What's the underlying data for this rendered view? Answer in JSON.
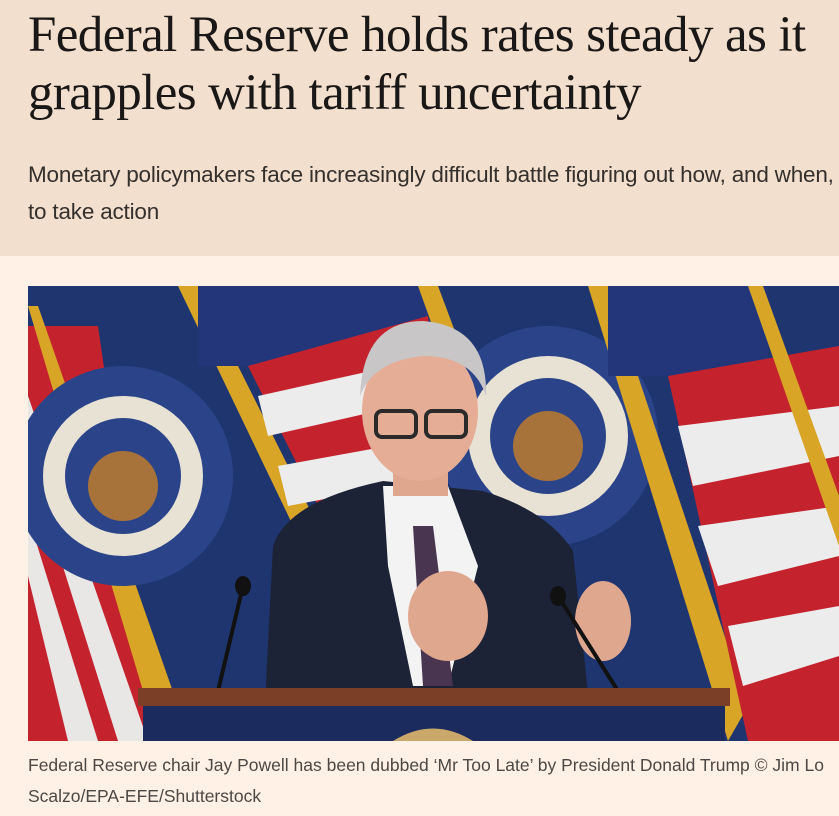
{
  "article": {
    "headline": "Federal Reserve holds rates steady as it grapples with tariff uncertainty",
    "standfirst": "Monetary policymakers face increasingly difficult battle figuring out how, and when, to take action",
    "image": {
      "description_icon": "photo-jay-powell-press-conference",
      "caption": "Federal Reserve chair Jay Powell has been dubbed ‘Mr Too Late’ by President Donald Trump © Jim Lo Scalzo/EPA-EFE/Shutterstock"
    }
  },
  "colors": {
    "header_bg": "#f2dfce",
    "page_bg": "#fff1e5",
    "text": "#1a1817"
  }
}
